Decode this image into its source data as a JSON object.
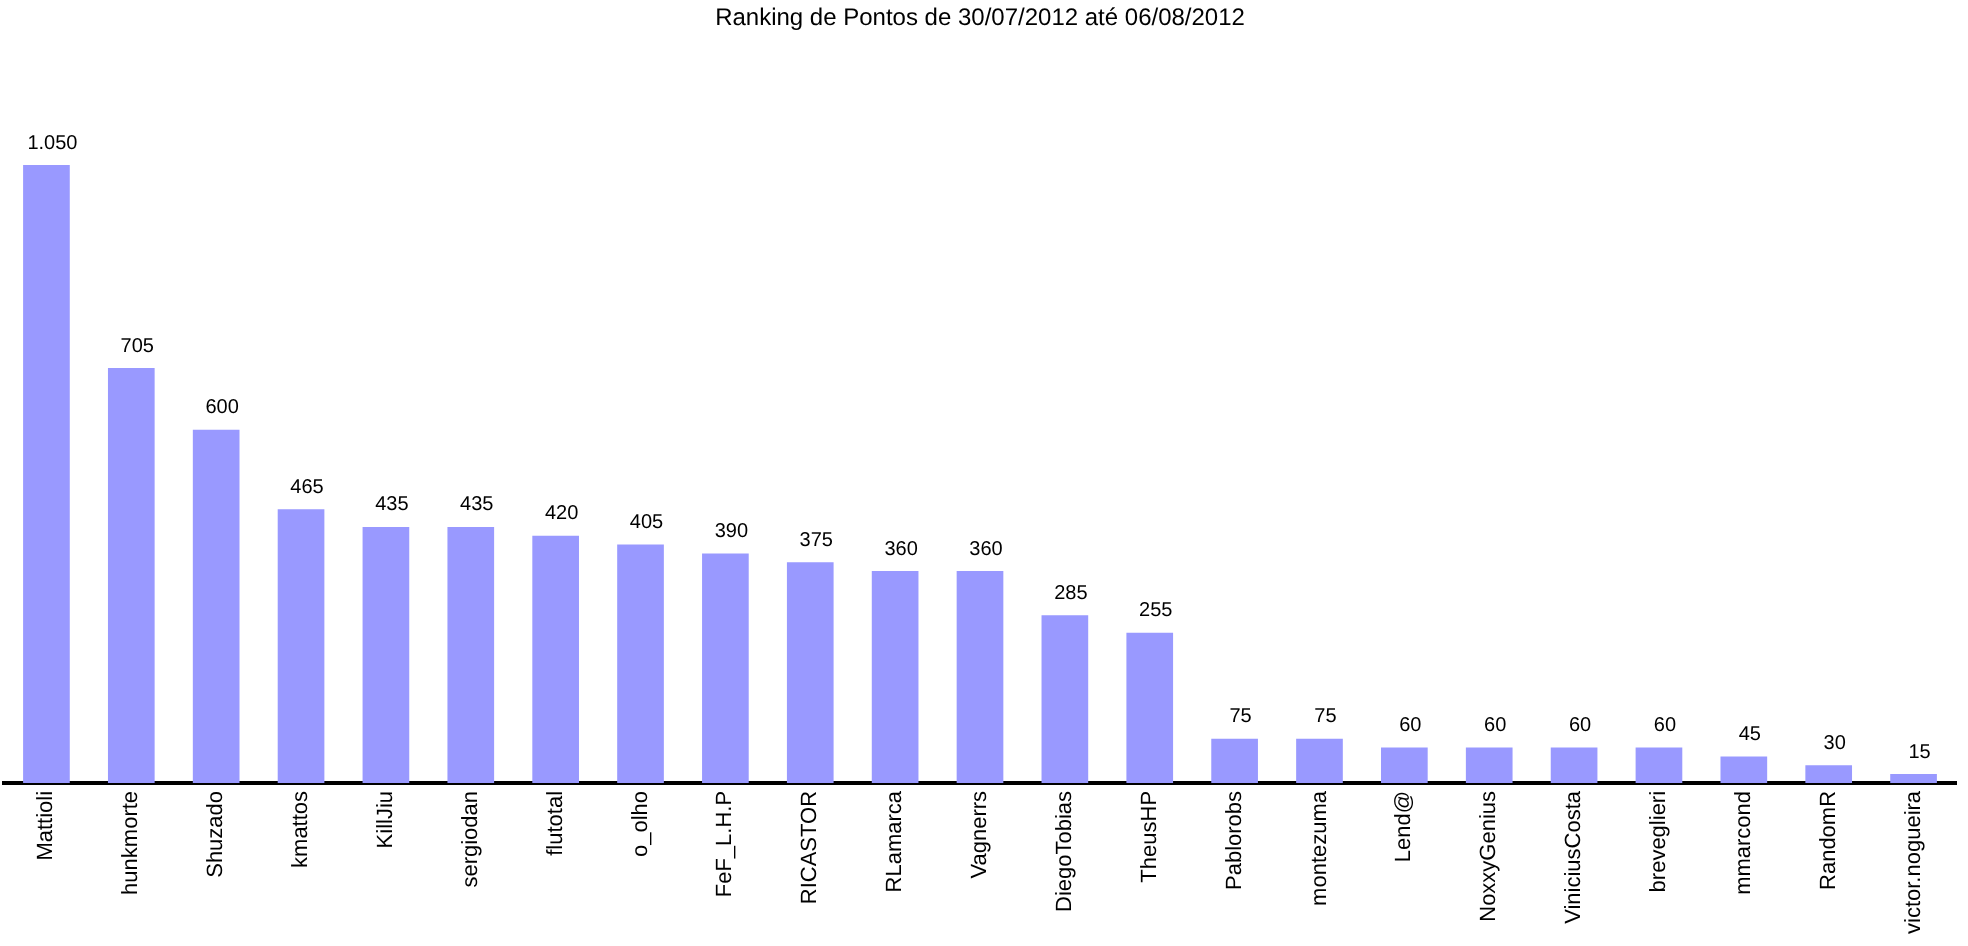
{
  "chart_data": {
    "type": "bar",
    "title": "Ranking de Pontos de 30/07/2012 até 06/08/2012",
    "categories": [
      "Mattioli",
      "hunkmorte",
      "Shuzado",
      "kmattos",
      "KillJiu",
      "sergiodan",
      "flutotal",
      "o_olho",
      "FeF_L.H.P",
      "RICASTOR",
      "RLamarca",
      "Vagnerrs",
      "DiegoTobias",
      "TheusHP",
      "Pablorobs",
      "montezuma",
      "Lend@",
      "NoxxyGenius",
      "ViniciusCosta",
      "breveglieri",
      "mmarcond",
      "RandomR",
      "victor.nogueira"
    ],
    "values": [
      1050,
      705,
      600,
      465,
      435,
      435,
      420,
      405,
      390,
      375,
      360,
      360,
      285,
      255,
      75,
      75,
      60,
      60,
      60,
      60,
      45,
      30,
      15
    ],
    "value_labels": [
      "1.050",
      "705",
      "600",
      "465",
      "435",
      "435",
      "420",
      "405",
      "390",
      "375",
      "360",
      "360",
      "285",
      "255",
      "75",
      "75",
      "60",
      "60",
      "60",
      "60",
      "45",
      "30",
      "15"
    ],
    "color": "#9999ff",
    "grid": false,
    "legend": false,
    "tick_labels": "x"
  }
}
